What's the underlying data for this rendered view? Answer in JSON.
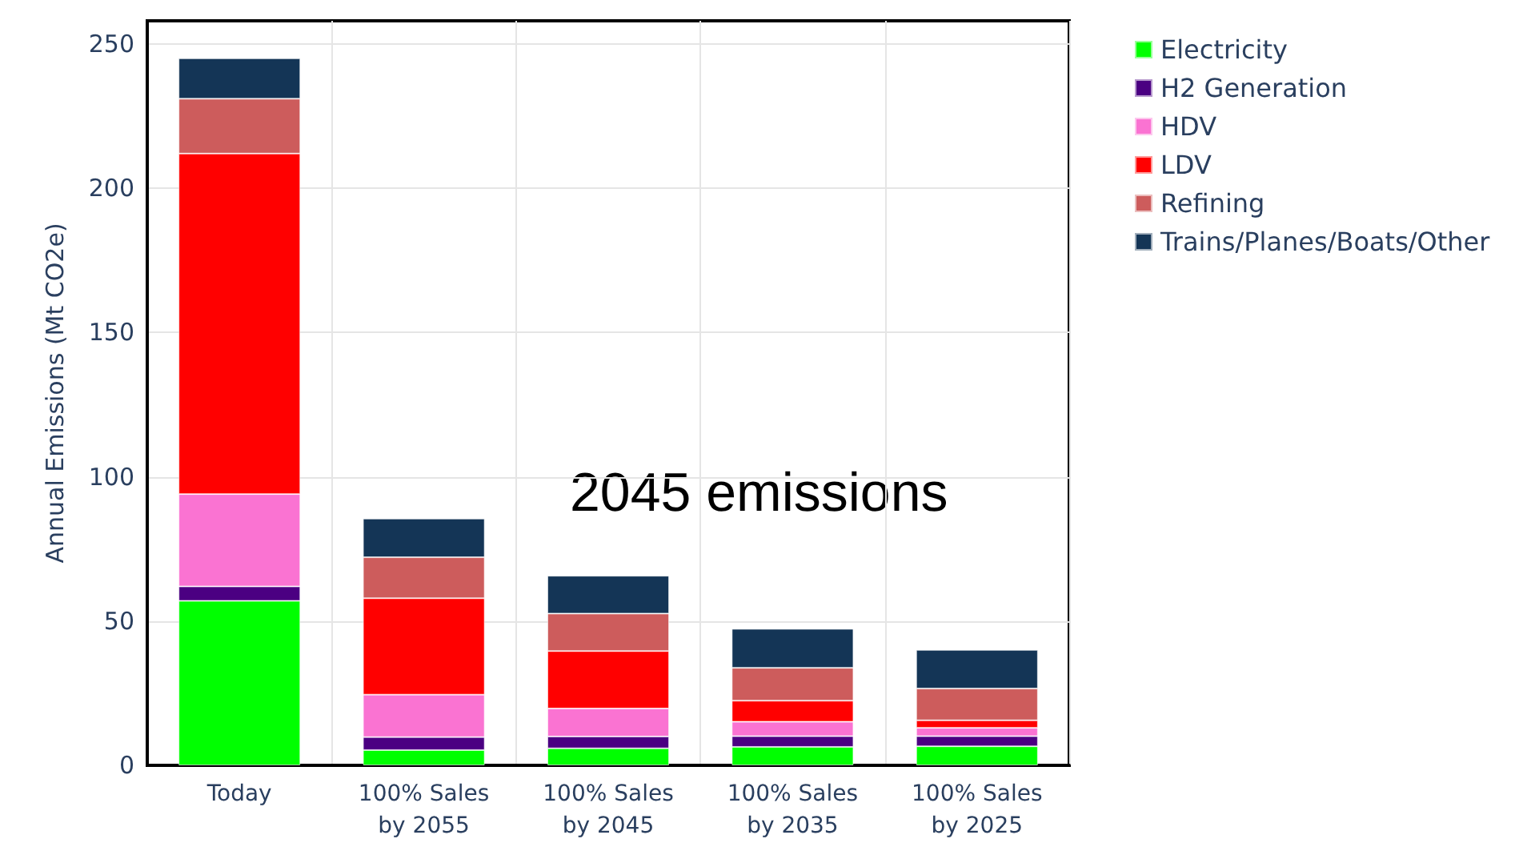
{
  "chart_data": {
    "type": "bar",
    "stacked": true,
    "ylabel": "Annual Emissions (Mt CO2e)",
    "categories": [
      "Today",
      "100% Sales\nby 2055",
      "100% Sales\nby 2045",
      "100% Sales\nby 2035",
      "100% Sales\nby 2025"
    ],
    "series": [
      {
        "name": "Electricity",
        "color": "#00ff00",
        "values": [
          57,
          5.3,
          5.9,
          6.4,
          6.6
        ]
      },
      {
        "name": "H2 Generation",
        "color": "#4b0082",
        "values": [
          5,
          4.5,
          4.1,
          3.7,
          3.5
        ]
      },
      {
        "name": "HDV",
        "color": "#fa73d2",
        "values": [
          32,
          14.7,
          9.7,
          5,
          2.9
        ]
      },
      {
        "name": "LDV",
        "color": "#ff0000",
        "values": [
          118,
          33.4,
          19.9,
          7.3,
          2.6
        ]
      },
      {
        "name": "Refining",
        "color": "#cd5c5c",
        "values": [
          19,
          14.2,
          13,
          11.4,
          11
        ]
      },
      {
        "name": "Trains/Planes/Boats/Other",
        "color": "#143556",
        "values": [
          14,
          13.4,
          13.1,
          13.5,
          13.4
        ]
      }
    ],
    "ylim": [
      0,
      258
    ],
    "yticks": [
      0,
      50,
      100,
      150,
      200,
      250
    ],
    "grid": true,
    "legend": "top right",
    "annotations": [
      "2045 emissions"
    ]
  }
}
